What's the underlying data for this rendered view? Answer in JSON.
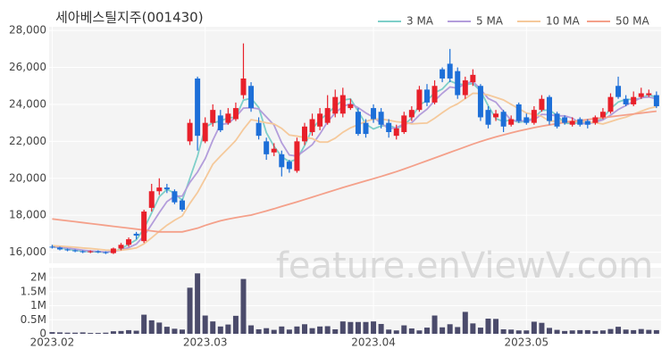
{
  "chart_data": {
    "type": "candlestick",
    "title": "세아베스틸지주(001430)",
    "watermark": "feature.enViewV.com",
    "legend": "top-right",
    "grid": true,
    "up_color": "#e8202a",
    "down_color": "#1d6fd8",
    "categories": [
      "2023.02",
      null,
      null,
      null,
      null,
      null,
      null,
      null,
      null,
      null,
      null,
      null,
      null,
      null,
      null,
      null,
      null,
      null,
      null,
      null,
      "2023.03",
      null,
      null,
      null,
      null,
      null,
      null,
      null,
      null,
      null,
      null,
      null,
      null,
      null,
      null,
      null,
      null,
      null,
      null,
      null,
      null,
      null,
      "2023.04",
      null,
      null,
      null,
      null,
      null,
      null,
      null,
      null,
      null,
      null,
      null,
      null,
      null,
      null,
      null,
      null,
      null,
      null,
      null,
      "2023.05",
      null,
      null,
      null,
      null,
      null,
      null,
      null,
      null,
      null,
      null,
      null,
      null,
      null,
      null,
      null,
      null,
      null
    ],
    "open": [
      16300,
      16250,
      16150,
      16100,
      16050,
      16000,
      16050,
      16000,
      15950,
      16200,
      16400,
      17000,
      16600,
      18400,
      19300,
      19500,
      19300,
      18800,
      22000,
      25400,
      22000,
      23000,
      23400,
      23000,
      23200,
      24500,
      25000,
      23000,
      22000,
      21400,
      21300,
      20900,
      20400,
      22000,
      22500,
      22800,
      23000,
      23500,
      23500,
      23800,
      23600,
      23000,
      23800,
      23600,
      23000,
      22300,
      22500,
      23300,
      23700,
      24800,
      24100,
      25900,
      26200,
      25800,
      24500,
      25200,
      25000,
      23700,
      23300,
      23600,
      22900,
      24000,
      23300,
      23000,
      23700,
      24400,
      23500,
      23300,
      22900,
      23200,
      23100,
      23000,
      23300,
      23600,
      25000,
      24300,
      24000,
      24400,
      24500,
      24500
    ],
    "high": [
      16400,
      16300,
      16200,
      16150,
      16100,
      16100,
      16100,
      16050,
      16250,
      16500,
      16800,
      17100,
      18300,
      19700,
      20000,
      19700,
      19400,
      18900,
      23200,
      25500,
      23300,
      24000,
      23700,
      23800,
      24100,
      27300,
      25200,
      23300,
      22200,
      21900,
      21500,
      21000,
      22200,
      23000,
      23500,
      23800,
      24500,
      24800,
      24900,
      24300,
      23800,
      23200,
      24000,
      23800,
      23200,
      22900,
      23600,
      23900,
      25000,
      25100,
      25300,
      26000,
      27000,
      26000,
      25500,
      25900,
      25100,
      23900,
      23700,
      23700,
      23400,
      24100,
      23500,
      23900,
      24500,
      24500,
      23600,
      23400,
      23300,
      23300,
      23200,
      23400,
      23800,
      24600,
      25500,
      24500,
      24700,
      24900,
      24800,
      24700
    ],
    "low": [
      16200,
      16100,
      16050,
      16000,
      15950,
      15950,
      15950,
      15900,
      15900,
      16100,
      16300,
      16700,
      16500,
      18200,
      19100,
      19200,
      18600,
      18200,
      21800,
      21500,
      21900,
      22800,
      22500,
      22900,
      23100,
      24300,
      23600,
      22100,
      21000,
      21200,
      20100,
      20300,
      20300,
      21800,
      22300,
      22600,
      22900,
      23300,
      23300,
      23700,
      22300,
      22200,
      23000,
      22700,
      22200,
      22100,
      22400,
      23100,
      23600,
      23900,
      24000,
      25200,
      25200,
      24300,
      24300,
      25000,
      23100,
      22700,
      23100,
      22500,
      22800,
      23000,
      22900,
      22900,
      23600,
      22900,
      22700,
      22900,
      22800,
      22800,
      22700,
      22900,
      23200,
      23500,
      24300,
      23900,
      23900,
      24300,
      24400,
      23800
    ],
    "close": [
      16250,
      16150,
      16100,
      16050,
      16000,
      16050,
      16000,
      15950,
      16200,
      16400,
      16700,
      16900,
      18200,
      19300,
      19500,
      19400,
      18700,
      18300,
      23000,
      22300,
      23000,
      23700,
      22600,
      23500,
      23800,
      25400,
      23800,
      22300,
      21300,
      21600,
      20600,
      20500,
      22000,
      22800,
      23200,
      23500,
      23800,
      24400,
      24500,
      24000,
      22400,
      22400,
      23200,
      22900,
      22500,
      22700,
      23400,
      23700,
      24800,
      24100,
      25000,
      25400,
      25400,
      24500,
      25300,
      25600,
      23300,
      22900,
      23500,
      22800,
      23200,
      23100,
      23000,
      23700,
      24300,
      23100,
      22800,
      23000,
      23100,
      22900,
      22900,
      23300,
      23600,
      24400,
      24400,
      24000,
      24400,
      24600,
      24600,
      23900
    ],
    "series": [
      {
        "name": "3 MA",
        "color": "#7ecfc9",
        "values": [
          16300,
          16230,
          16170,
          16100,
          16050,
          16030,
          16020,
          16000,
          16050,
          16180,
          16430,
          16670,
          17270,
          18130,
          19000,
          19400,
          19200,
          18800,
          20000,
          21200,
          22770,
          23000,
          23100,
          23270,
          23300,
          24230,
          24330,
          23830,
          22470,
          21730,
          21170,
          20900,
          21030,
          21770,
          22670,
          23170,
          23500,
          23900,
          24230,
          24300,
          23630,
          22930,
          22670,
          22830,
          22870,
          22700,
          22870,
          23270,
          23970,
          24200,
          24630,
          24830,
          25270,
          25100,
          25070,
          25130,
          24730,
          23930,
          23230,
          23070,
          23170,
          23030,
          23100,
          23270,
          23670,
          23700,
          23400,
          22970,
          22970,
          23000,
          22970,
          23030,
          23270,
          23770,
          24130,
          24270,
          24270,
          24330,
          24530,
          24370
        ]
      },
      {
        "name": "5 MA",
        "color": "#b39ddb",
        "values": [
          16300,
          16270,
          16220,
          16170,
          16110,
          16070,
          16040,
          16010,
          16040,
          16120,
          16250,
          16440,
          16880,
          17500,
          18140,
          18740,
          19020,
          19040,
          19780,
          20340,
          21060,
          22060,
          22920,
          22960,
          23320,
          23800,
          23820,
          23760,
          23320,
          22880,
          21920,
          21260,
          21200,
          21500,
          21820,
          22400,
          23060,
          23540,
          23880,
          24040,
          23820,
          23540,
          23300,
          22980,
          22680,
          22740,
          22940,
          23000,
          23420,
          23740,
          24200,
          24600,
          24940,
          24880,
          25120,
          25240,
          24820,
          24320,
          24120,
          23620,
          23140,
          23100,
          23120,
          23160,
          23460,
          23440,
          23380,
          23380,
          23260,
          22980,
          22940,
          23040,
          23160,
          23420,
          23720,
          23940,
          24160,
          24360,
          24400,
          24300
        ]
      },
      {
        "name": "10 MA",
        "color": "#f5c99b",
        "values": [
          16350,
          16330,
          16300,
          16270,
          16230,
          16200,
          16160,
          16120,
          16100,
          16110,
          16160,
          16230,
          16450,
          16780,
          17130,
          17460,
          17730,
          17960,
          18640,
          19230,
          19980,
          20760,
          21200,
          21620,
          22050,
          22650,
          23170,
          23100,
          23000,
          22940,
          22700,
          22340,
          22280,
          22210,
          22150,
          21960,
          21960,
          22170,
          22490,
          22730,
          22900,
          23080,
          23200,
          23210,
          23140,
          23060,
          23020,
          22940,
          22970,
          22990,
          23250,
          23550,
          23830,
          24030,
          24310,
          24600,
          24590,
          24510,
          24380,
          24240,
          24000,
          23770,
          23530,
          23450,
          23350,
          23100,
          23090,
          23100,
          23060,
          23070,
          23050,
          23010,
          22940,
          23070,
          23200,
          23310,
          23470,
          23630,
          23780,
          23880
        ]
      },
      {
        "name": "50 MA",
        "color": "#f4a08a",
        "values": [
          17800,
          17750,
          17700,
          17650,
          17600,
          17550,
          17500,
          17450,
          17400,
          17350,
          17300,
          17250,
          17200,
          17150,
          17100,
          17100,
          17100,
          17100,
          17200,
          17300,
          17450,
          17580,
          17700,
          17790,
          17870,
          17940,
          18010,
          18120,
          18230,
          18350,
          18480,
          18600,
          18720,
          18850,
          18980,
          19110,
          19240,
          19370,
          19500,
          19620,
          19740,
          19860,
          19980,
          20100,
          20230,
          20360,
          20500,
          20650,
          20800,
          20950,
          21100,
          21250,
          21400,
          21550,
          21700,
          21850,
          21990,
          22120,
          22240,
          22350,
          22460,
          22560,
          22650,
          22740,
          22820,
          22890,
          22960,
          23020,
          23080,
          23130,
          23180,
          23230,
          23280,
          23330,
          23380,
          23430,
          23480,
          23530,
          23580,
          23630
        ]
      }
    ],
    "ylim": [
      15400,
      28200
    ],
    "yticks": [
      {
        "value": 16000,
        "label": "16,000"
      },
      {
        "value": 18000,
        "label": "18,000"
      },
      {
        "value": 20000,
        "label": "20,000"
      },
      {
        "value": 22000,
        "label": "22,000"
      },
      {
        "value": 24000,
        "label": "24,000"
      },
      {
        "value": 26000,
        "label": "26,000"
      },
      {
        "value": 28000,
        "label": "28,000"
      }
    ],
    "volume": {
      "color": "#4b4b6b",
      "ylim": [
        0,
        2350000
      ],
      "yticks": [
        0,
        {
          "value": 500000,
          "label": "0.5M"
        },
        {
          "value": 1000000,
          "label": "1M"
        },
        {
          "value": 1500000,
          "label": "1.5M"
        },
        {
          "value": 2000000,
          "label": "2M"
        }
      ],
      "values": [
        60000,
        50000,
        40000,
        40000,
        50000,
        30000,
        30000,
        40000,
        90000,
        100000,
        130000,
        110000,
        680000,
        480000,
        400000,
        250000,
        180000,
        150000,
        1640000,
        2150000,
        650000,
        440000,
        260000,
        330000,
        640000,
        1950000,
        300000,
        160000,
        200000,
        140000,
        260000,
        150000,
        260000,
        340000,
        200000,
        260000,
        270000,
        160000,
        440000,
        420000,
        420000,
        420000,
        440000,
        350000,
        150000,
        120000,
        300000,
        190000,
        120000,
        220000,
        650000,
        230000,
        340000,
        240000,
        780000,
        370000,
        220000,
        540000,
        530000,
        160000,
        150000,
        120000,
        120000,
        430000,
        390000,
        210000,
        140000,
        100000,
        120000,
        130000,
        130000,
        100000,
        120000,
        170000,
        250000,
        150000,
        130000,
        170000,
        140000,
        130000
      ]
    }
  }
}
